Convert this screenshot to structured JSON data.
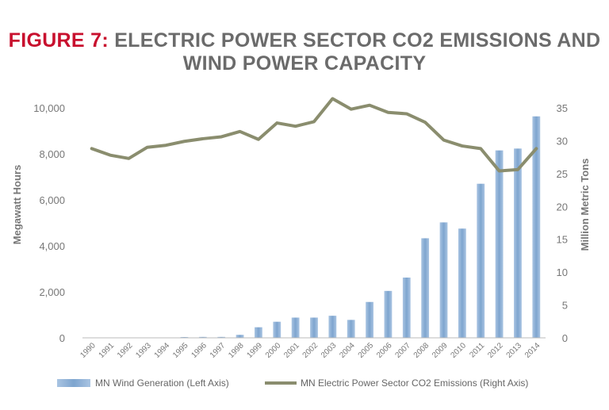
{
  "title": {
    "prefix": "FIGURE 7:",
    "line1": "ELECTRIC POWER SECTOR CO2 EMISSIONS AND",
    "line2": "WIND POWER CAPACITY"
  },
  "colors": {
    "prefix": "#c8102e",
    "bars": "#8fb2d6",
    "line": "#8a8d6e",
    "text": "#777777"
  },
  "chart_data": {
    "type": "bar",
    "categories": [
      "1990",
      "1991",
      "1992",
      "1993",
      "1994",
      "1995",
      "1996",
      "1997",
      "1998",
      "1999",
      "2000",
      "2001",
      "2002",
      "2003",
      "2004",
      "2005",
      "2006",
      "2007",
      "2008",
      "2009",
      "2010",
      "2011",
      "2012",
      "2013",
      "2014"
    ],
    "series": [
      {
        "name": "MN Wind Generation (Left Axis)",
        "type": "bar",
        "axis": "left",
        "values": [
          0,
          0,
          0,
          0,
          10,
          35,
          40,
          40,
          130,
          460,
          700,
          880,
          880,
          960,
          780,
          1560,
          2040,
          2620,
          4330,
          5020,
          4750,
          6700,
          8150,
          8230,
          9630
        ]
      },
      {
        "name": "MN Electric Power Sector CO2 Emissions (Right Axis)",
        "type": "line",
        "axis": "right",
        "values": [
          28.8,
          27.8,
          27.3,
          29.0,
          29.3,
          29.9,
          30.3,
          30.6,
          31.4,
          30.2,
          32.7,
          32.2,
          32.9,
          36.4,
          34.8,
          35.4,
          34.3,
          34.1,
          32.8,
          30.1,
          29.2,
          28.8,
          25.4,
          25.6,
          28.8
        ]
      }
    ],
    "ylabel_left": "Megawatt Hours",
    "ylabel_right": "Million Metric Tons",
    "ylim_left": [
      0,
      10000
    ],
    "ylim_right": [
      0,
      35
    ],
    "yticks_left": [
      "0",
      "2,000",
      "4,000",
      "6,000",
      "8,000",
      "10,000"
    ],
    "yticks_right": [
      "0",
      "5",
      "10",
      "15",
      "20",
      "25",
      "30",
      "35"
    ],
    "grid": false,
    "legend_position": "bottom"
  }
}
